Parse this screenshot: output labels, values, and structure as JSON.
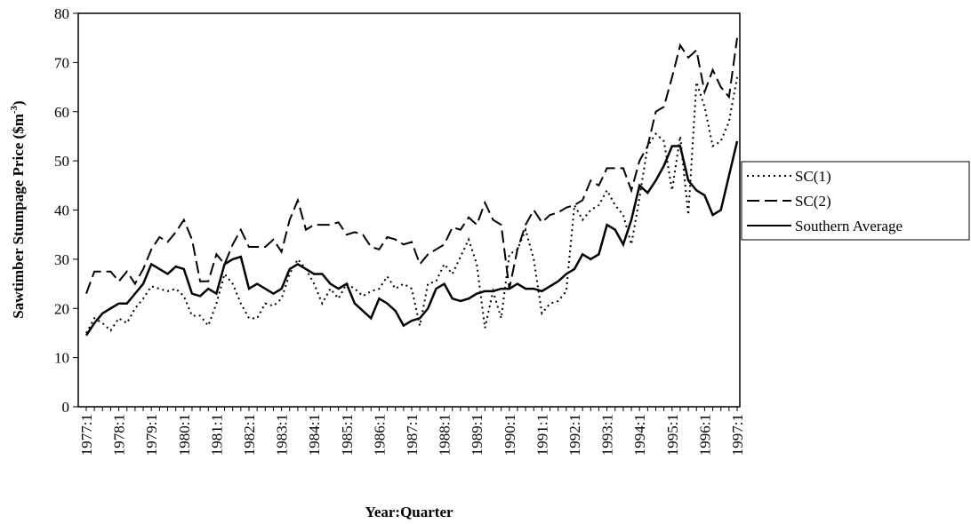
{
  "chart_data": {
    "type": "line",
    "x_label": "Year:Quarter",
    "y_label": "Sawtimber Stumpage Price ($m",
    "y_label_sup": "-3",
    "y_label_end": ")",
    "categories": [
      "1977:1",
      null,
      null,
      null,
      "1978:1",
      null,
      null,
      null,
      "1979:1",
      null,
      null,
      null,
      "1980:1",
      null,
      null,
      null,
      "1981:1",
      null,
      null,
      null,
      "1982:1",
      null,
      null,
      null,
      "1983:1",
      null,
      null,
      null,
      "1984:1",
      null,
      null,
      null,
      "1985:1",
      null,
      null,
      null,
      "1986:1",
      null,
      null,
      null,
      "1987:1",
      null,
      null,
      null,
      "1988:1",
      null,
      null,
      null,
      "1989:1",
      null,
      null,
      null,
      "1990:1",
      null,
      null,
      null,
      "1991:1",
      null,
      null,
      null,
      "1992:1",
      null,
      null,
      null,
      "1993:1",
      null,
      null,
      null,
      "1994:1",
      null,
      null,
      null,
      "1995:1",
      null,
      null,
      null,
      "1996:1",
      null,
      null,
      null,
      "1997:1"
    ],
    "series": [
      {
        "name": "SC(1)",
        "color": "#000000",
        "dash": "dotted",
        "values": [
          15,
          18,
          17,
          15.5,
          18,
          17,
          20,
          22,
          24.5,
          24,
          23.5,
          24,
          22.5,
          18.5,
          18.5,
          16.5,
          21,
          27,
          25,
          21,
          18,
          18,
          21,
          20.5,
          22,
          27,
          30,
          28,
          25,
          21,
          24,
          22,
          25,
          24,
          22.5,
          23.5,
          24,
          26.5,
          24,
          25,
          24,
          16.5,
          25,
          25.5,
          29,
          27,
          30.5,
          34,
          29,
          16,
          23.5,
          18,
          31,
          32,
          36,
          30,
          19,
          21,
          21.5,
          23.5,
          41,
          38,
          40,
          41,
          44,
          41,
          39,
          33,
          42.5,
          53,
          55.5,
          54,
          44,
          55,
          39,
          66,
          61,
          53,
          54,
          58,
          67
        ]
      },
      {
        "name": "SC(2)",
        "color": "#000000",
        "dash": "dashed",
        "values": [
          23,
          27.5,
          27.5,
          27.5,
          25.5,
          27.5,
          25,
          28,
          32,
          34.5,
          33.5,
          35.5,
          38,
          34,
          25.5,
          25.5,
          31,
          29,
          33,
          36,
          32.5,
          32.5,
          32.5,
          34,
          31.5,
          38,
          42,
          36,
          37,
          37,
          37,
          37.5,
          35,
          35.5,
          35,
          32.5,
          32,
          34.5,
          34,
          33,
          33.5,
          29,
          31,
          32,
          33,
          36.5,
          36,
          38.5,
          37,
          41.5,
          38,
          37,
          24,
          32,
          37,
          40,
          37.5,
          39,
          39.5,
          40.5,
          41,
          42,
          46,
          45,
          48.5,
          48.5,
          48.5,
          44,
          50,
          53,
          60,
          61,
          67,
          73.5,
          71,
          72.5,
          64,
          68.5,
          65,
          63,
          75
        ]
      },
      {
        "name": "Southern Average",
        "color": "#000000",
        "dash": "solid",
        "values": [
          14.5,
          17,
          19,
          20,
          21,
          21,
          23,
          25,
          29,
          28,
          27,
          28.5,
          28,
          23,
          22.5,
          24,
          23,
          29,
          30,
          30.5,
          24,
          25,
          24,
          23,
          24,
          28,
          29,
          28,
          27,
          27,
          25,
          24,
          25,
          21,
          19.5,
          18,
          22,
          21,
          19.5,
          16.5,
          17.5,
          18,
          20,
          24,
          25,
          22,
          21.5,
          22,
          23,
          23.5,
          23.5,
          24,
          24,
          25,
          24,
          24,
          23.5,
          24.5,
          25.5,
          27,
          28,
          31,
          30,
          31,
          37,
          36,
          33,
          38,
          45,
          43.5,
          46,
          49,
          53,
          53,
          46,
          44,
          43,
          39,
          40,
          47,
          54
        ]
      }
    ],
    "ylim": [
      0,
      80
    ],
    "yticks": [
      0,
      10,
      20,
      30,
      40,
      50,
      60,
      70,
      80
    ],
    "grid": false,
    "legend": "right"
  }
}
